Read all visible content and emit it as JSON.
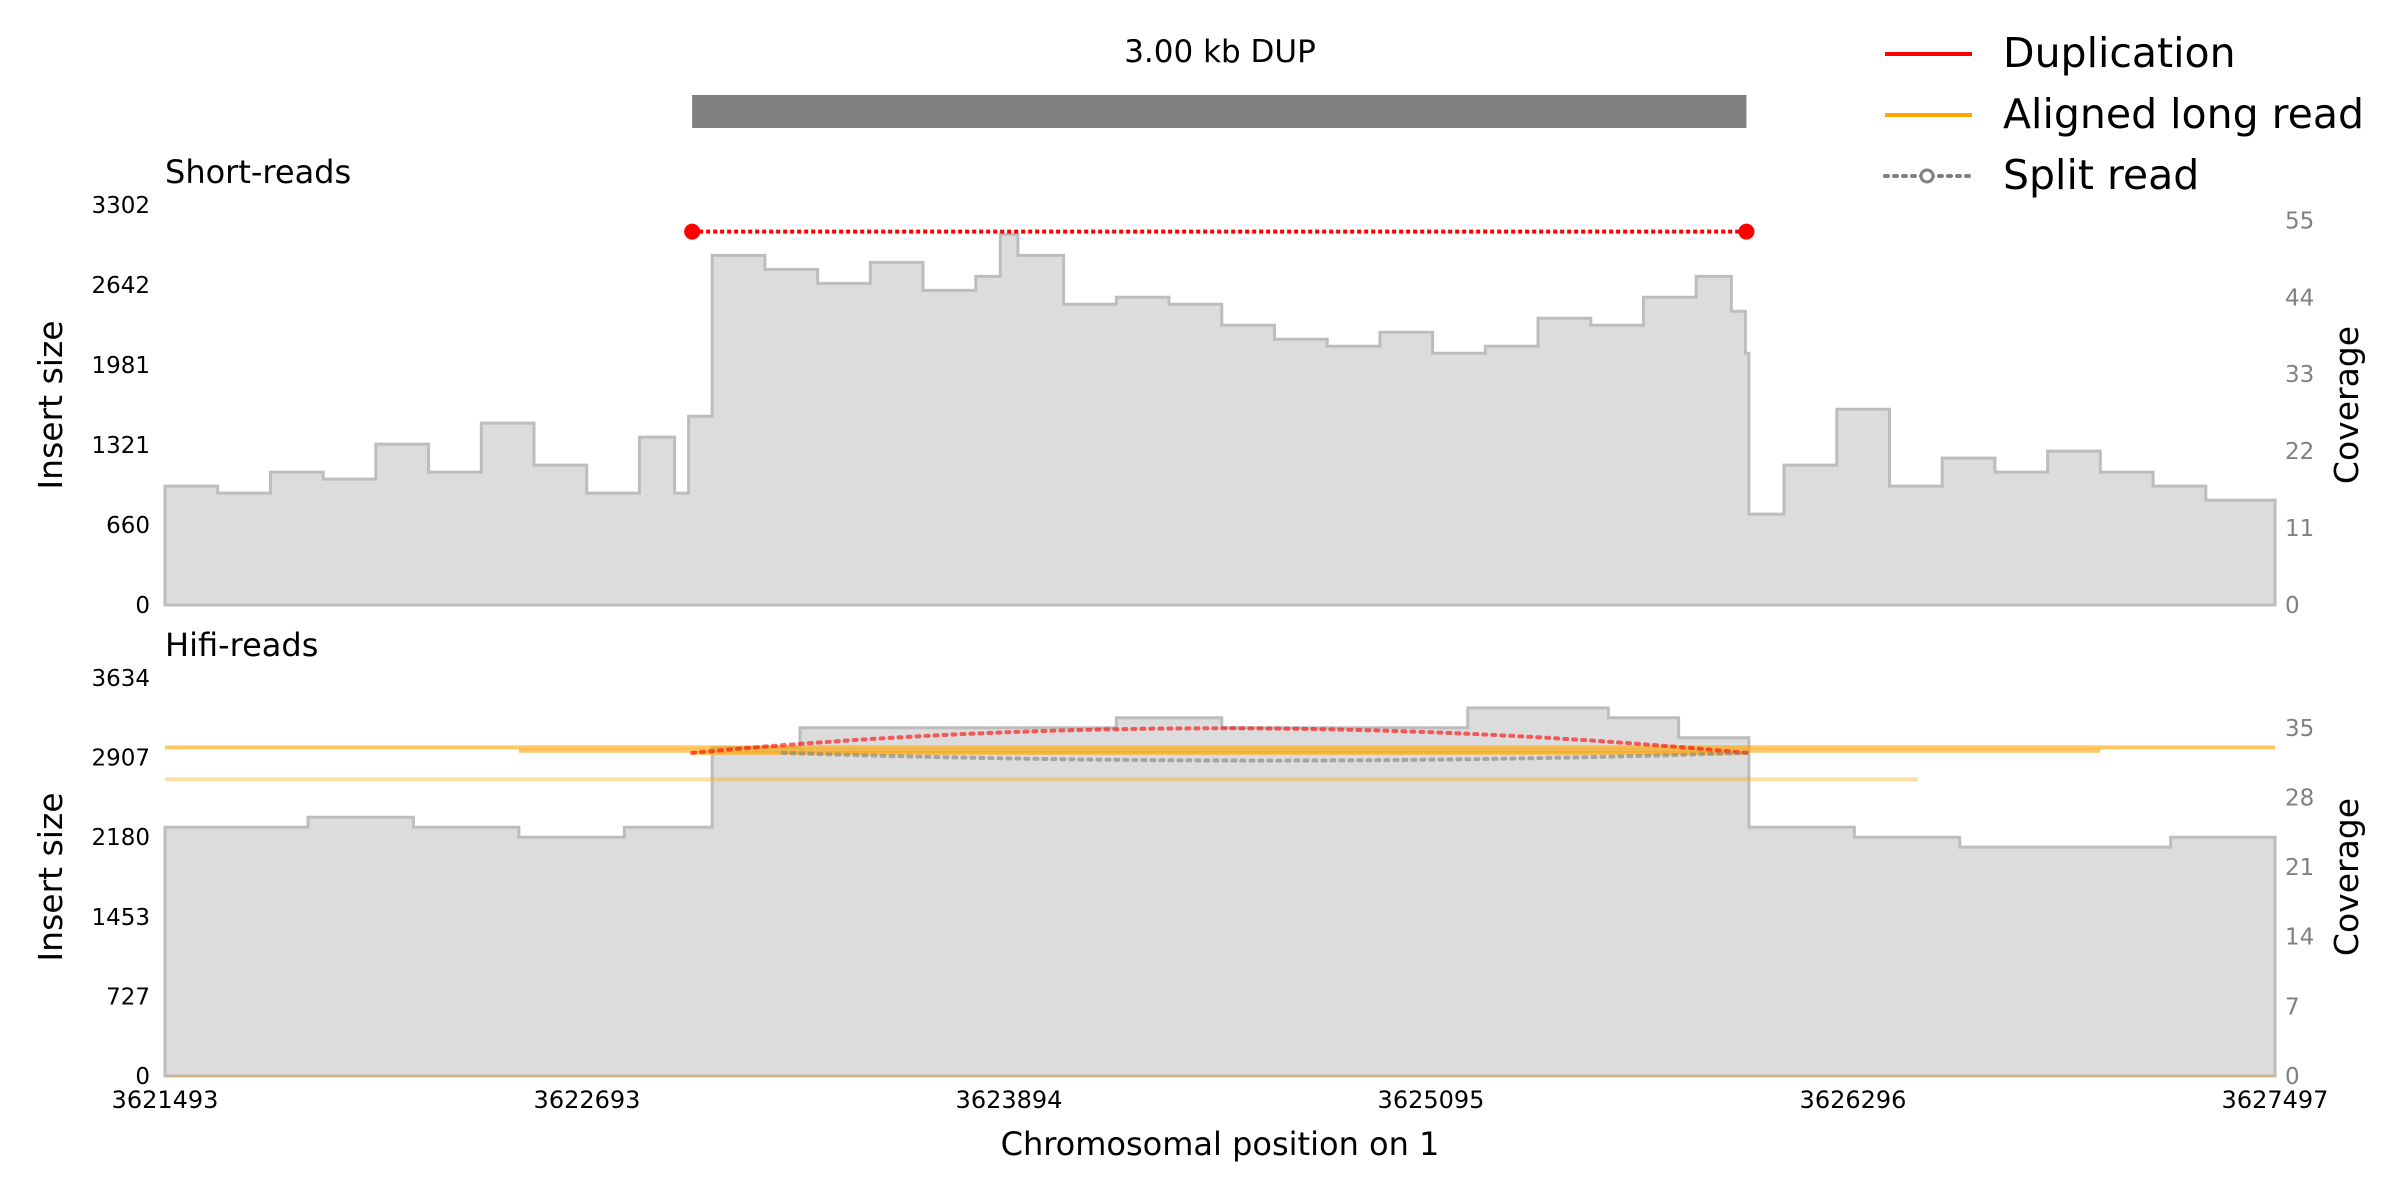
{
  "chart_data": {
    "type": "area",
    "title": "3.00 kb DUP",
    "xlabel": "Chromosomal position on 1",
    "x_ticks": [
      "3621493",
      "3622693",
      "3623894",
      "3625095",
      "3626296",
      "3627497"
    ],
    "xlim": [
      3621493,
      3627497
    ],
    "sv_region": {
      "start": 3622993,
      "end": 3625993,
      "color": "#808080"
    },
    "legend": {
      "placement": "top-right",
      "items": [
        {
          "label": "Duplication",
          "color": "#ff0000",
          "style": "solid"
        },
        {
          "label": "Aligned long read",
          "color": "#ffa500",
          "style": "solid"
        },
        {
          "label": "Split read",
          "color": "#808080",
          "style": "dotted-marker"
        }
      ]
    },
    "panels": [
      {
        "name": "Short-reads",
        "ylabel_left": "Insert size",
        "ylabel_right": "Coverage",
        "left_ticks": [
          "3302",
          "2642",
          "1981",
          "1321",
          "660",
          "0"
        ],
        "right_ticks": [
          "55",
          "44",
          "33",
          "22",
          "11",
          "0"
        ],
        "right_ylim": [
          0,
          57.2
        ],
        "coverage_x": [
          3621493,
          3621643,
          3621793,
          3621943,
          3622093,
          3622243,
          3622393,
          3622543,
          3622693,
          3622843,
          3622943,
          3622983,
          3623050,
          3623200,
          3623350,
          3623500,
          3623650,
          3623800,
          3623870,
          3623920,
          3624050,
          3624200,
          3624350,
          3624500,
          3624650,
          3624800,
          3624950,
          3625100,
          3625250,
          3625400,
          3625550,
          3625700,
          3625850,
          3625950,
          3625990,
          3626000,
          3626100,
          3626250,
          3626400,
          3626550,
          3626700,
          3626850,
          3627000,
          3627150,
          3627300,
          3627497
        ],
        "coverage_y": [
          17,
          16,
          19,
          18,
          23,
          19,
          26,
          20,
          16,
          24,
          16,
          27,
          50,
          48,
          46,
          49,
          45,
          47,
          53,
          50,
          43,
          44,
          43,
          40,
          38,
          37,
          39,
          36,
          37,
          41,
          40,
          44,
          47,
          42,
          36,
          13,
          20,
          28,
          17,
          21,
          19,
          22,
          19,
          17,
          15,
          14
        ],
        "split_reads": [
          {
            "start": 3622993,
            "end": 3625993,
            "insert_size": 3082,
            "color": "#ff0000"
          }
        ]
      },
      {
        "name": "Hifi-reads",
        "ylabel_left": "Insert size",
        "ylabel_right": "Coverage",
        "left_ticks": [
          "3634",
          "2907",
          "2180",
          "1453",
          "727",
          "0"
        ],
        "right_ticks": [
          "35",
          "28",
          "21",
          "14",
          "7",
          "0"
        ],
        "right_ylim": [
          0,
          40
        ],
        "coverage_x": [
          3621493,
          3621700,
          3621900,
          3622200,
          3622500,
          3622800,
          3622993,
          3623050,
          3623300,
          3623700,
          3624200,
          3624500,
          3624800,
          3625200,
          3625600,
          3625800,
          3625993,
          3626000,
          3626300,
          3626600,
          3626900,
          3627200,
          3627497
        ],
        "coverage_y": [
          25,
          25,
          26,
          25,
          24,
          25,
          25,
          33,
          35,
          35,
          36,
          35,
          35,
          37,
          36,
          34,
          34,
          25,
          24,
          23,
          23,
          24,
          24
        ],
        "aligned_long_reads": [
          {
            "start": 3621493,
            "end": 3627497,
            "insert_size": 3000,
            "color": "#ffa500"
          },
          {
            "start": 3622500,
            "end": 3627000,
            "insert_size": 2970,
            "color": "#ffa500"
          },
          {
            "start": 3622993,
            "end": 3626000,
            "insert_size": 2950,
            "color": "#ffa500"
          },
          {
            "start": 3621493,
            "end": 3626480,
            "insert_size": 2710,
            "color": "#ffa500"
          }
        ],
        "split_reads": [
          {
            "start": 3622993,
            "end": 3625993,
            "insert_size": 3175,
            "color": "#ff0000"
          },
          {
            "start": 3623250,
            "end": 3625993,
            "insert_size": 2880,
            "color": "#808080"
          }
        ]
      }
    ]
  }
}
